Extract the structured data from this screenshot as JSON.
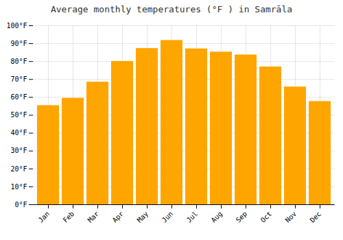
{
  "chart_data": {
    "type": "bar",
    "title": "Average monthly temperatures (°F ) in Samrāla",
    "categories": [
      "Jan",
      "Feb",
      "Mar",
      "Apr",
      "May",
      "Jun",
      "Jul",
      "Aug",
      "Sep",
      "Oct",
      "Nov",
      "Dec"
    ],
    "values": [
      55.4,
      59.5,
      68.5,
      80.1,
      87.3,
      91.8,
      87.1,
      85.3,
      83.7,
      77.0,
      65.8,
      57.7
    ],
    "color": "#FFA500",
    "ylim": [
      0,
      100
    ],
    "yticks": [
      {
        "value": 0,
        "label": "0°F"
      },
      {
        "value": 10,
        "label": "10°F"
      },
      {
        "value": 20,
        "label": "20°F"
      },
      {
        "value": 30,
        "label": "30°F"
      },
      {
        "value": 40,
        "label": "40°F"
      },
      {
        "value": 50,
        "label": "50°F"
      },
      {
        "value": 60,
        "label": "60°F"
      },
      {
        "value": 70,
        "label": "70°F"
      },
      {
        "value": 80,
        "label": "80°F"
      },
      {
        "value": 90,
        "label": "90°F"
      },
      {
        "value": 100,
        "label": "100°F"
      }
    ],
    "grid": true
  }
}
